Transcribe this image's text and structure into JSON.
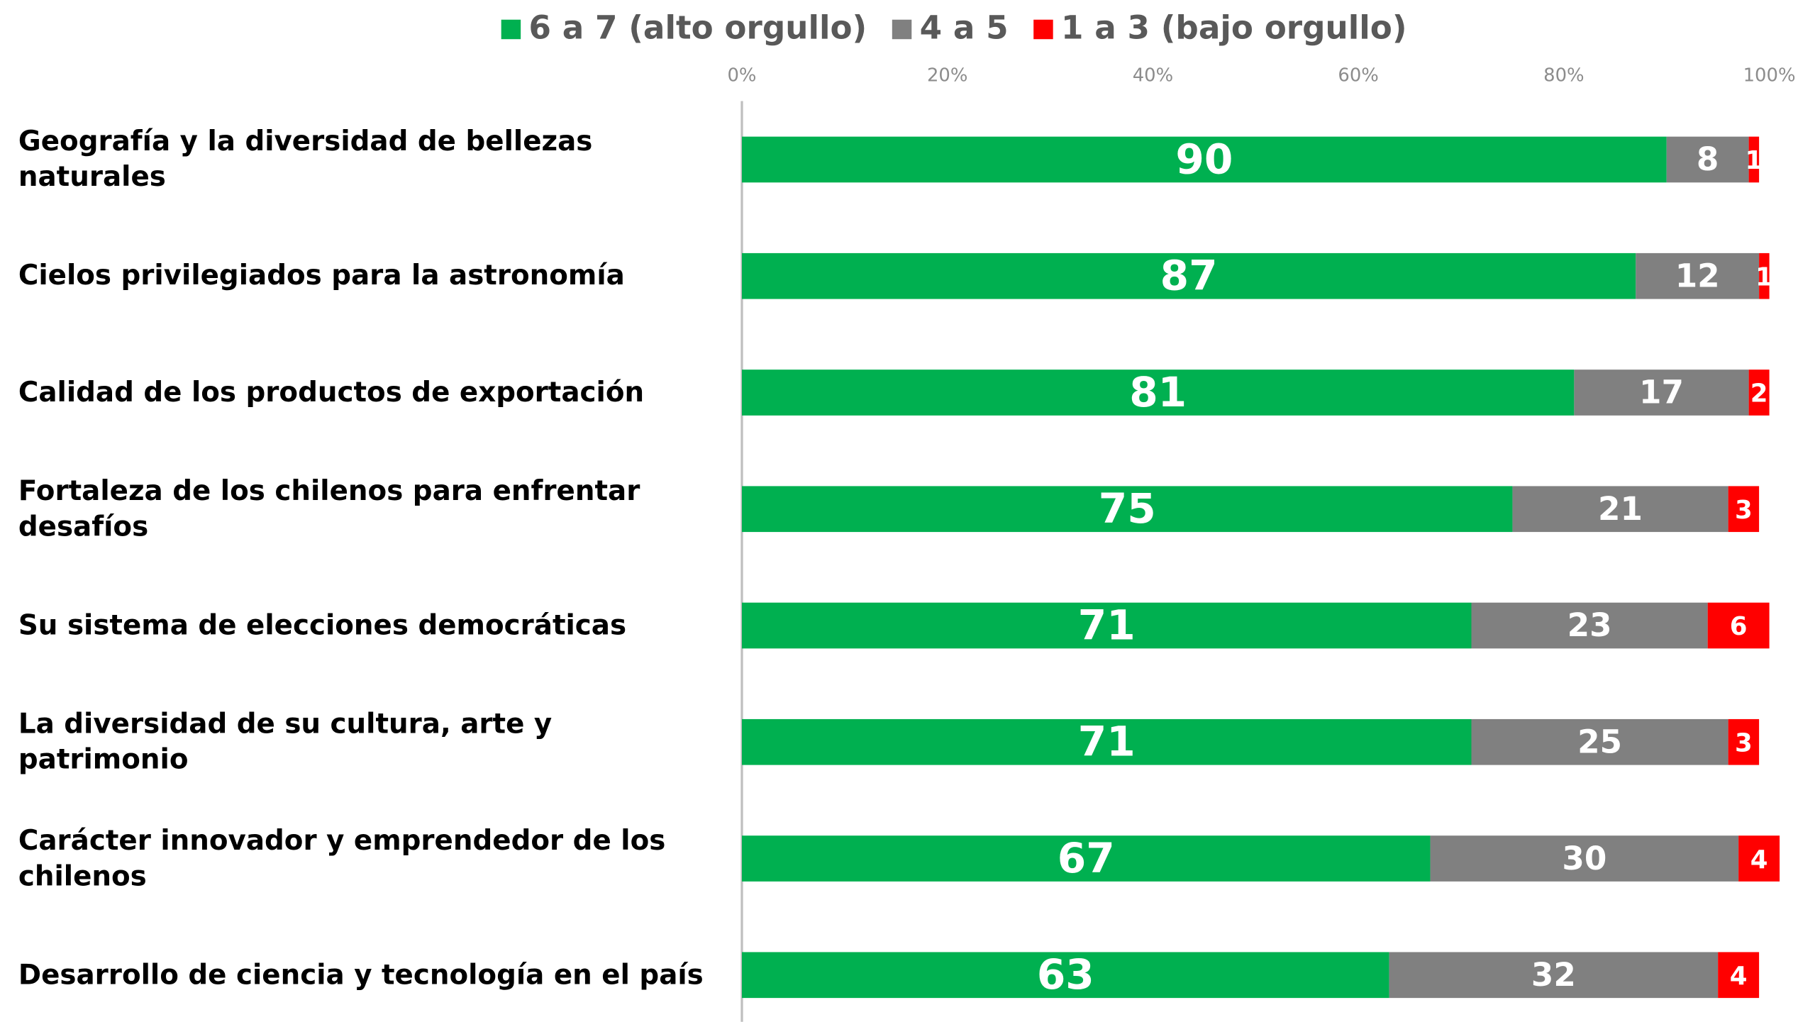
{
  "chart_data": {
    "type": "stacked_bar_horizontal",
    "categories": [
      "Geografía y la diversidad de bellezas naturales",
      "Cielos privilegiados para la astronomía",
      "Calidad de los productos de exportación",
      "Fortaleza de los chilenos para enfrentar desafíos",
      "Su sistema de elecciones democráticas",
      "La diversidad de su cultura, arte y patrimonio",
      "Carácter innovador y emprendedor de los chilenos",
      "Desarrollo de ciencia y tecnología en el país"
    ],
    "series": [
      {
        "name": "6 a 7 (alto orgullo)",
        "color": "#00b050",
        "values": [
          90,
          87,
          81,
          75,
          71,
          71,
          67,
          63
        ]
      },
      {
        "name": "4 a 5",
        "color": "#808080",
        "values": [
          8,
          12,
          17,
          21,
          23,
          25,
          30,
          32
        ]
      },
      {
        "name": "1 a 3 (bajo orgullo)",
        "color": "#ff0000",
        "values": [
          1,
          1,
          2,
          3,
          6,
          3,
          4,
          4
        ]
      }
    ],
    "xlim": [
      0,
      100
    ],
    "xticks": [
      {
        "value": 0,
        "label": "0%"
      },
      {
        "value": 20,
        "label": "20%"
      },
      {
        "value": 40,
        "label": "40%"
      },
      {
        "value": 60,
        "label": "60%"
      },
      {
        "value": 80,
        "label": "80%"
      },
      {
        "value": 100,
        "label": "100%"
      }
    ],
    "legend": "top"
  }
}
